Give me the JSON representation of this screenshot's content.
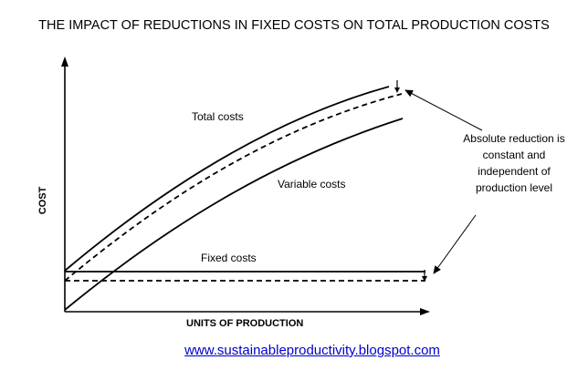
{
  "title": "THE IMPACT OF REDUCTIONS IN FIXED COSTS ON TOTAL PRODUCTION COSTS",
  "axes": {
    "y_label": "COST",
    "x_label": "UNITS OF PRODUCTION"
  },
  "curves": {
    "total_costs_label": "Total costs",
    "variable_costs_label": "Variable costs",
    "fixed_costs_label": "Fixed costs"
  },
  "annotation": {
    "lines": [
      "Absolute reduction is",
      "constant and",
      "independent of",
      "production level"
    ]
  },
  "footer": {
    "url": "www.sustainableproductivity.blogspot.com"
  }
}
